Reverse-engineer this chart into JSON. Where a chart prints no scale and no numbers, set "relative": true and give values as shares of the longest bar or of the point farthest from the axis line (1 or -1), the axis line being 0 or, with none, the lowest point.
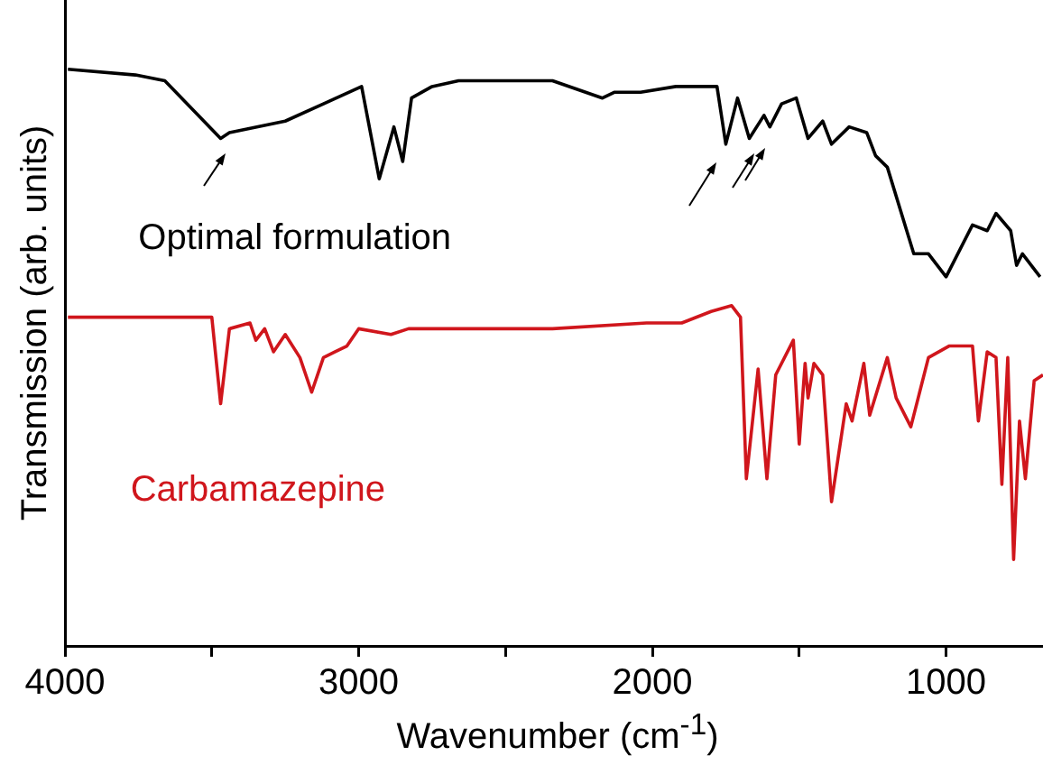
{
  "chart_data": {
    "type": "line",
    "xlabel": "Wavenumber (cm$^{-1}$)",
    "ylabel": "Transmission (arb. units)",
    "relative": true,
    "xlim": [
      4000,
      670
    ],
    "xticks": [
      4000,
      {
        "value": 3500,
        "label": null
      },
      3000,
      {
        "value": 2500,
        "label": null
      },
      2000,
      {
        "value": 1500,
        "label": null
      },
      1000
    ],
    "grid": false,
    "marker": "none",
    "line_style": "solid",
    "series": [
      {
        "name": "Optimal formulation",
        "color": "#000000",
        "x": [
          3990,
          3760,
          3660,
          3470,
          3440,
          3250,
          3120,
          2990,
          2930,
          2880,
          2850,
          2820,
          2750,
          2660,
          2340,
          2170,
          2130,
          2040,
          1920,
          1780,
          1750,
          1710,
          1670,
          1620,
          1600,
          1560,
          1510,
          1470,
          1420,
          1390,
          1330,
          1270,
          1240,
          1200,
          1110,
          1060,
          1000,
          910,
          860,
          830,
          780,
          760,
          740,
          680
        ],
        "values": [
          1.0,
          0.99,
          0.98,
          0.88,
          0.89,
          0.91,
          0.94,
          0.97,
          0.81,
          0.9,
          0.84,
          0.95,
          0.97,
          0.98,
          0.98,
          0.95,
          0.96,
          0.96,
          0.97,
          0.97,
          0.87,
          0.95,
          0.88,
          0.92,
          0.9,
          0.94,
          0.95,
          0.88,
          0.91,
          0.87,
          0.9,
          0.89,
          0.85,
          0.83,
          0.68,
          0.68,
          0.64,
          0.73,
          0.72,
          0.75,
          0.72,
          0.66,
          0.68,
          0.64
        ]
      },
      {
        "name": "Carbamazepine",
        "color": "#d0161c",
        "x": [
          3990,
          3500,
          3470,
          3440,
          3370,
          3350,
          3320,
          3290,
          3250,
          3200,
          3160,
          3120,
          3080,
          3040,
          3000,
          2890,
          2830,
          2630,
          2340,
          2020,
          1900,
          1800,
          1730,
          1700,
          1680,
          1640,
          1610,
          1580,
          1520,
          1500,
          1480,
          1470,
          1450,
          1420,
          1390,
          1340,
          1320,
          1280,
          1260,
          1200,
          1170,
          1120,
          1060,
          990,
          910,
          890,
          860,
          830,
          810,
          790,
          770,
          750,
          730,
          700,
          670
        ],
        "values": [
          0.57,
          0.57,
          0.42,
          0.55,
          0.56,
          0.53,
          0.55,
          0.51,
          0.54,
          0.5,
          0.44,
          0.5,
          0.51,
          0.52,
          0.55,
          0.54,
          0.55,
          0.55,
          0.55,
          0.56,
          0.56,
          0.58,
          0.59,
          0.57,
          0.29,
          0.48,
          0.29,
          0.47,
          0.53,
          0.35,
          0.49,
          0.43,
          0.49,
          0.47,
          0.25,
          0.42,
          0.39,
          0.49,
          0.4,
          0.5,
          0.43,
          0.38,
          0.5,
          0.52,
          0.52,
          0.39,
          0.51,
          0.5,
          0.28,
          0.5,
          0.15,
          0.39,
          0.29,
          0.46,
          0.47
        ]
      }
    ]
  }
}
